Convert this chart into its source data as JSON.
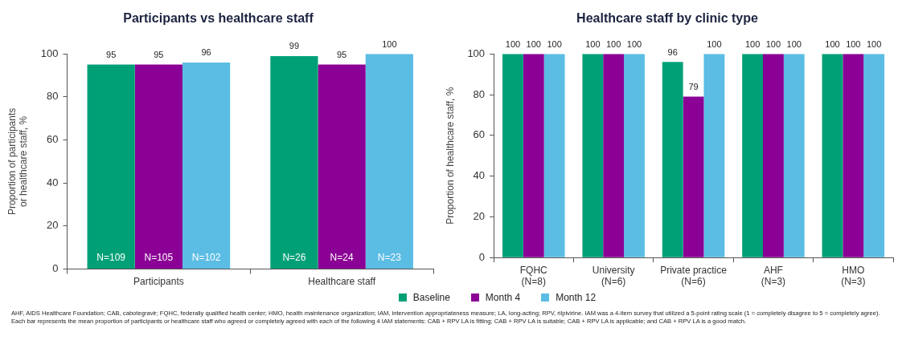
{
  "chart_data": [
    {
      "type": "bar",
      "title": "Participants vs healthcare staff",
      "ylabel": "Proportion of participants\nor healthcare staff, %",
      "categories": [
        "Participants",
        "Healthcare staff"
      ],
      "series": [
        {
          "color": "#00a077",
          "values": [
            95,
            99
          ]
        },
        {
          "color": "#8b0095",
          "values": [
            95,
            95
          ]
        },
        {
          "color": "#5bbde4",
          "values": [
            96,
            100
          ]
        }
      ],
      "ylim": [
        0,
        100
      ],
      "yticks": [
        0,
        20,
        40,
        60,
        80,
        100
      ],
      "grid": false,
      "data_labels": true,
      "annotations": [
        "N=109",
        "N=105",
        "N=102",
        "N=26",
        "N=24",
        "N=23"
      ]
    },
    {
      "type": "bar",
      "title": "Healthcare staff by clinic type",
      "ylabel": "Proportion of healthcare staff, %",
      "categories": [
        "FQHC\n(N=8)",
        "University\n(N=6)",
        "Private practice\n(N=6)",
        "AHF\n(N=3)",
        "HMO\n(N=3)"
      ],
      "series": [
        {
          "name": "Baseline",
          "color": "#00a077",
          "values": [
            100,
            100,
            96,
            100,
            100
          ]
        },
        {
          "name": "Month 4",
          "color": "#8b0095",
          "values": [
            100,
            100,
            79,
            100,
            100
          ]
        },
        {
          "name": "Month 12",
          "color": "#5bbde4",
          "values": [
            100,
            100,
            100,
            100,
            100
          ]
        }
      ],
      "ylim": [
        0,
        100
      ],
      "yticks": [
        0,
        20,
        40,
        60,
        80,
        100
      ],
      "grid": false,
      "data_labels": true,
      "legend": "bottom",
      "annotations": [
        "AHF, AIDS Healthcare Foundation; CAB, cabotegravir; FQHC, federally qualified health center; HMO, health maintenance organization; IAM, intervention appropriateness measure; LA, long-acting; RPV, rilpivirine. IAM was a 4-item survey that utilized a 5-point rating scale (1 = completely disagree to 5 = completely agree). Each bar represents the mean proportion of participants or healthcare staff who agreed or completely agreed with each of the following 4 IAM statements: CAB + RPV LA is fitting; CAB + RPV LA is suitable; CAB + RPV LA is applicable; and CAB + RPV LA is a good match."
      ]
    }
  ]
}
